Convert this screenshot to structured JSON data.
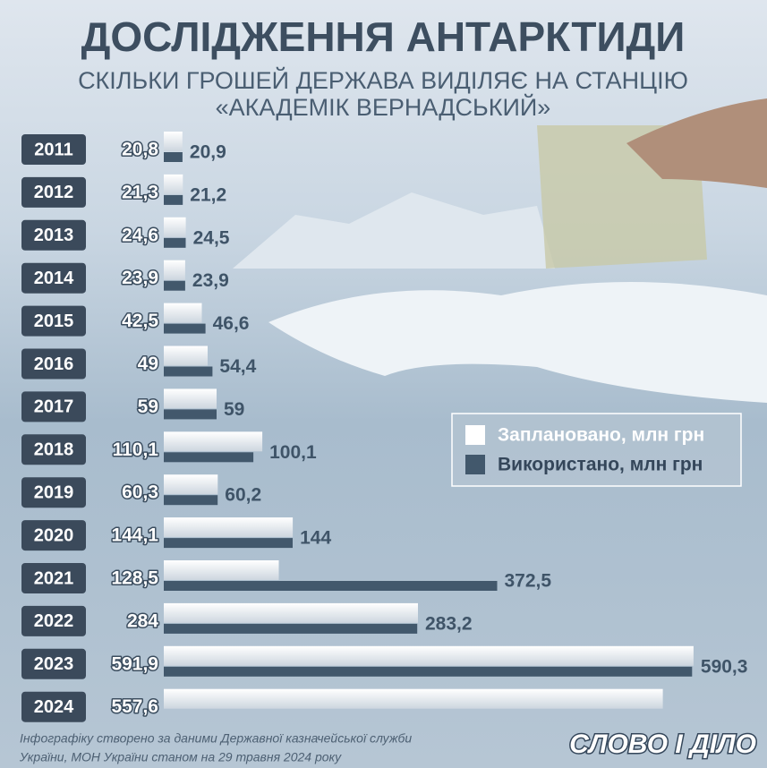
{
  "chart_data": {
    "type": "bar",
    "orientation": "horizontal",
    "title": "ДОСЛІДЖЕННЯ АНТАРКТИДИ",
    "subtitle": [
      "СКІЛЬКИ ГРОШЕЙ ДЕРЖАВА ВИДІЛЯЄ НА СТАНЦІЮ",
      "«АКАДЕМІК ВЕРНАДСЬКИЙ»"
    ],
    "categories": [
      "2011",
      "2012",
      "2013",
      "2014",
      "2015",
      "2016",
      "2017",
      "2018",
      "2019",
      "2020",
      "2021",
      "2022",
      "2023",
      "2024"
    ],
    "series": [
      {
        "name": "Заплановано, млн грн",
        "color": "#ffffff",
        "values": [
          20.8,
          21.3,
          24.6,
          23.9,
          42.5,
          49,
          59,
          110.1,
          60.3,
          144.1,
          128.5,
          284,
          591.9,
          557.6
        ],
        "value_labels": [
          "20,8",
          "21,3",
          "24,6",
          "23,9",
          "42,5",
          "49",
          "59",
          "110,1",
          "60,3",
          "144,1",
          "128,5",
          "284",
          "591,9",
          "557,6"
        ]
      },
      {
        "name": "Використано, млн грн",
        "color": "#42586c",
        "values": [
          20.9,
          21.2,
          24.5,
          23.9,
          46.6,
          54.4,
          59,
          100.1,
          60.2,
          144,
          372.5,
          283.2,
          590.3,
          null
        ],
        "value_labels": [
          "20,9",
          "21,2",
          "24,5",
          "23,9",
          "46,6",
          "54,4",
          "59",
          "100,1",
          "60,2",
          "144",
          "372,5",
          "283,2",
          "590,3",
          null
        ]
      }
    ],
    "source": [
      "Інфографіку створено за даними Державної казначейської служби",
      "України, МОН України станом на 29 травня 2024 року"
    ],
    "logo": "СЛОВО І ДІЛО"
  }
}
